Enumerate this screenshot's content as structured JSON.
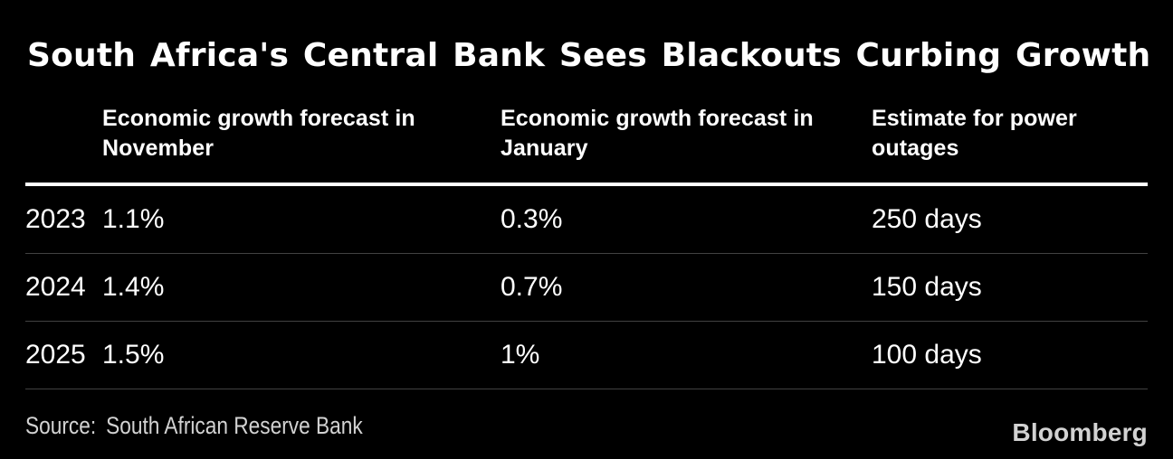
{
  "title": "South Africa's Central Bank Sees Blackouts Curbing Growth",
  "table": {
    "headers": {
      "year": "",
      "november": "Economic growth forecast in November",
      "january": "Economic growth forecast in January",
      "outages": "Estimate for power outages"
    },
    "rows": [
      {
        "year": "2023",
        "november": "1.1%",
        "january": "0.3%",
        "outages": "250 days"
      },
      {
        "year": "2024",
        "november": "1.4%",
        "january": "0.7%",
        "outages": "150 days"
      },
      {
        "year": "2025",
        "november": "1.5%",
        "january": "1%",
        "outages": "100 days"
      }
    ]
  },
  "source": {
    "label": "Source:",
    "text": "South African Reserve Bank"
  },
  "brand": {
    "logo_text": "Bloomberg"
  },
  "colors": {
    "background": "#000000",
    "text": "#ffffff",
    "divider": "#424242",
    "header_rule": "#ffffff",
    "muted_text": "#d2d2d2"
  },
  "chart_data": {
    "type": "table",
    "title": "South Africa's Central Bank Sees Blackouts Curbing Growth",
    "columns": [
      "",
      "Economic growth forecast in November",
      "Economic growth forecast in January",
      "Estimate for power outages"
    ],
    "rows": [
      [
        "2023",
        "1.1%",
        "0.3%",
        "250 days"
      ],
      [
        "2024",
        "1.4%",
        "0.7%",
        "150 days"
      ],
      [
        "2025",
        "1.5%",
        "1%",
        "100 days"
      ]
    ],
    "numeric": {
      "years": [
        2023,
        2024,
        2025
      ],
      "forecast_november_pct": [
        1.1,
        1.4,
        1.5
      ],
      "forecast_january_pct": [
        0.3,
        0.7,
        1.0
      ],
      "power_outage_days": [
        250,
        150,
        100
      ]
    },
    "source": "South African Reserve Bank",
    "layout": {
      "grid": false,
      "legend": false,
      "background": "#000000"
    }
  }
}
